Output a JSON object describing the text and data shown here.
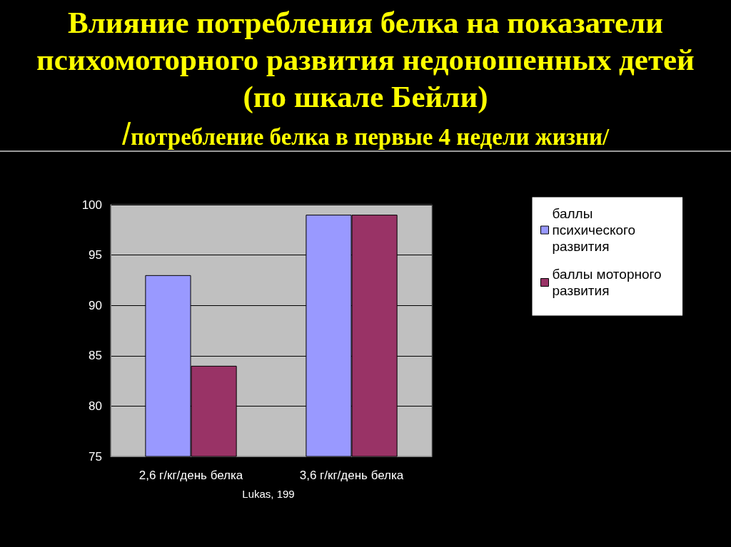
{
  "chart_data": {
    "type": "bar",
    "title": "Влияние потребления белка на показатели психомоторного развития недоношенных детей (по шкале Бейли)",
    "subtitle": "/потребление белка в первые 4 недели жизни/",
    "categories": [
      "2,6 г/кг/день белка",
      "3,6 г/кг/день белка"
    ],
    "series": [
      {
        "name": "баллы психического развития",
        "color": "#9999ff",
        "values": [
          93,
          99
        ]
      },
      {
        "name": "баллы моторного развития",
        "color": "#993366",
        "values": [
          84,
          99
        ]
      }
    ],
    "ylim": [
      75,
      100
    ],
    "yticks": [
      75,
      80,
      85,
      90,
      95,
      100
    ],
    "grid": "y",
    "legend": "right",
    "annotations": [
      "Lukas, 199"
    ]
  }
}
